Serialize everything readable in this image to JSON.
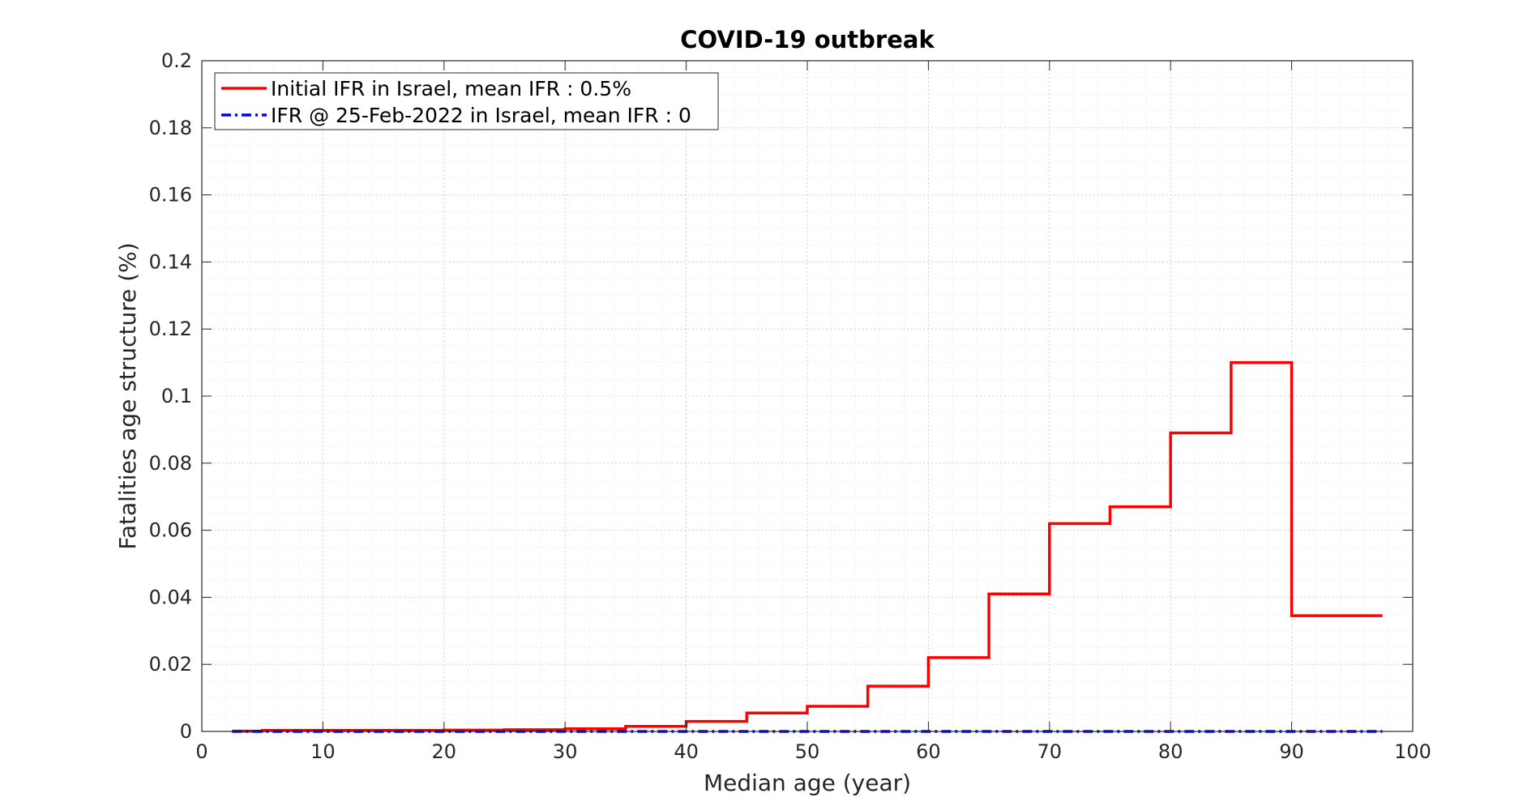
{
  "chart_data": {
    "type": "line",
    "title": "COVID-19 outbreak",
    "xlabel": "Median age (year)",
    "ylabel": "Fatalities age structure (%)",
    "xlim": [
      0,
      100
    ],
    "ylim": [
      0,
      0.2
    ],
    "x_ticks": [
      0,
      10,
      20,
      30,
      40,
      50,
      60,
      70,
      80,
      90,
      100
    ],
    "x_tick_labels": [
      "0",
      "10",
      "20",
      "30",
      "40",
      "50",
      "60",
      "70",
      "80",
      "90",
      "100"
    ],
    "y_ticks": [
      0,
      0.02,
      0.04,
      0.06,
      0.08,
      0.1,
      0.12,
      0.14,
      0.16,
      0.18,
      0.2
    ],
    "y_tick_labels": [
      "0",
      "0.02",
      "0.04",
      "0.06",
      "0.08",
      "0.1",
      "0.12",
      "0.14",
      "0.16",
      "0.18",
      "0.2"
    ],
    "grid": true,
    "minor_grid": true,
    "legend_position": "top-left",
    "series": [
      {
        "name": "Initial IFR in Israel, mean IFR : 0.5%",
        "style": "solid",
        "color": "#ff0000",
        "step": true,
        "x": [
          2.5,
          7.5,
          12.5,
          17.5,
          22.5,
          27.5,
          32.5,
          37.5,
          42.5,
          47.5,
          52.5,
          57.5,
          62.5,
          67.5,
          72.5,
          77.5,
          82.5,
          87.5,
          92.5,
          97.5
        ],
        "y": [
          0.0001,
          0.0003,
          0.0003,
          0.0003,
          0.0004,
          0.0005,
          0.0008,
          0.0015,
          0.003,
          0.0055,
          0.0075,
          0.0135,
          0.022,
          0.041,
          0.062,
          0.067,
          0.089,
          0.11,
          0.0345,
          0.0345
        ]
      },
      {
        "name": "IFR @ 25-Feb-2022 in Israel, mean IFR : 0",
        "style": "dashdot",
        "color": "#0000ff",
        "step": true,
        "x": [
          2.5,
          7.5,
          12.5,
          17.5,
          22.5,
          27.5,
          32.5,
          37.5,
          42.5,
          47.5,
          52.5,
          57.5,
          62.5,
          67.5,
          72.5,
          77.5,
          82.5,
          87.5,
          92.5,
          97.5
        ],
        "y": [
          0,
          0,
          0,
          0,
          0,
          0,
          0,
          0,
          0,
          0,
          0,
          0,
          0,
          0,
          0,
          0,
          0,
          0,
          0,
          0
        ]
      }
    ]
  }
}
